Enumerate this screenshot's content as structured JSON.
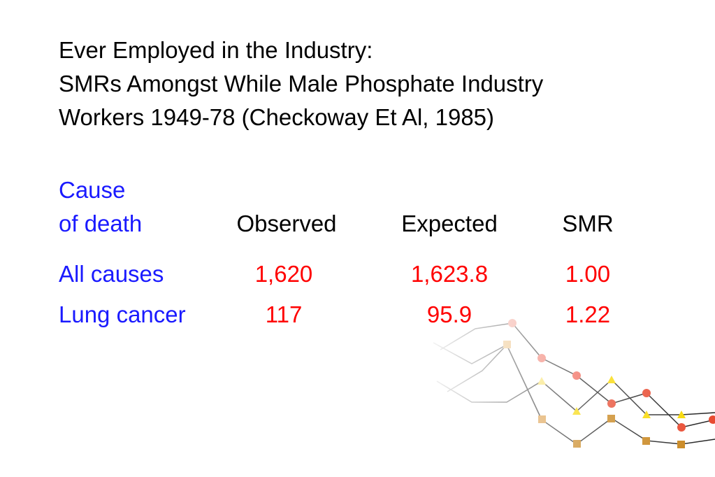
{
  "title": [
    "Ever Employed in the Industry:",
    "SMRs Amongst While Male Phosphate Industry",
    "Workers 1949-78 (Checkoway Et Al, 1985)"
  ],
  "table": {
    "cause_header": [
      "Cause",
      "of death"
    ],
    "header": [
      "Observed",
      "Expected",
      "SMR"
    ],
    "rows": [
      [
        "All causes",
        "1,620",
        "1,623.8",
        "1.00"
      ],
      [
        "Lung cancer",
        "117",
        "95.9",
        "1.22"
      ]
    ]
  }
}
